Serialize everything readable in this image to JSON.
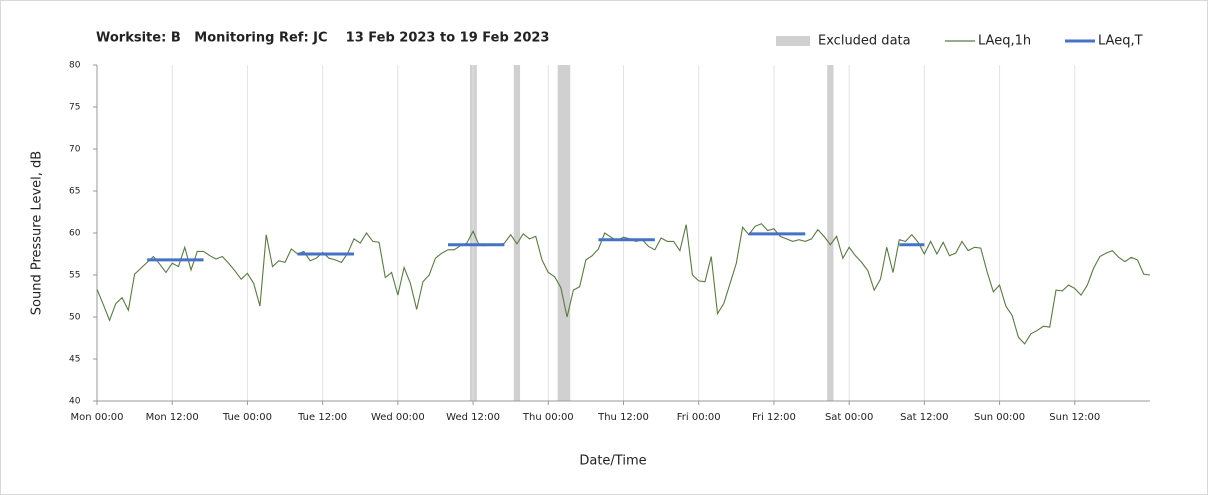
{
  "chart_data": {
    "type": "line",
    "title": "Worksite: B   Monitoring Ref: JC    13 Feb 2023 to 19 Feb 2023",
    "x_label": "Date/Time",
    "y_label": "Sound Pressure Level, dB",
    "xlim": [
      0,
      168
    ],
    "xticks": [
      {
        "value": 0,
        "label": "Mon 00:00"
      },
      {
        "value": 12,
        "label": "Mon 12:00"
      },
      {
        "value": 24,
        "label": "Tue 00:00"
      },
      {
        "value": 36,
        "label": "Tue 12:00"
      },
      {
        "value": 48,
        "label": "Wed 00:00"
      },
      {
        "value": 60,
        "label": "Wed 12:00"
      },
      {
        "value": 72,
        "label": "Thu 00:00"
      },
      {
        "value": 84,
        "label": "Thu 12:00"
      },
      {
        "value": 96,
        "label": "Fri 00:00"
      },
      {
        "value": 108,
        "label": "Fri 12:00"
      },
      {
        "value": 120,
        "label": "Sat 00:00"
      },
      {
        "value": 132,
        "label": "Sat 12:00"
      },
      {
        "value": 144,
        "label": "Sun 00:00"
      },
      {
        "value": 156,
        "label": "Sun 12:00"
      }
    ],
    "ylim": [
      40,
      80
    ],
    "yticks": [
      40,
      45,
      50,
      55,
      60,
      65,
      70,
      75,
      80
    ],
    "grid": "x",
    "legend": "top-right",
    "excluded": {
      "name": "Excluded data",
      "color": "#d0d0d0",
      "ranges": [
        [
          59.5,
          60.6
        ],
        [
          66.5,
          67.5
        ],
        [
          73.5,
          75.5
        ],
        [
          116.5,
          117.5
        ]
      ]
    },
    "series": [
      {
        "name": "LAeq,1h",
        "color": "#5a7a45",
        "x": [
          0,
          1,
          2,
          3,
          4,
          5,
          6,
          7,
          8,
          9,
          10,
          11,
          12,
          13,
          14,
          15,
          16,
          17,
          18,
          19,
          20,
          21,
          22,
          23,
          24,
          25,
          26,
          27,
          28,
          29,
          30,
          31,
          32,
          33,
          34,
          35,
          36,
          37,
          38,
          39,
          40,
          41,
          42,
          43,
          44,
          45,
          46,
          47,
          48,
          49,
          50,
          51,
          52,
          53,
          54,
          55,
          56,
          57,
          58,
          59,
          60,
          61,
          62,
          63,
          64,
          65,
          66,
          67,
          68,
          69,
          70,
          71,
          72,
          73,
          74,
          75,
          76,
          77,
          78,
          79,
          80,
          81,
          82,
          83,
          84,
          85,
          86,
          87,
          88,
          89,
          90,
          91,
          92,
          93,
          94,
          95,
          96,
          97,
          98,
          99,
          100,
          101,
          102,
          103,
          104,
          105,
          106,
          107,
          108,
          109,
          110,
          111,
          112,
          113,
          114,
          115,
          116,
          117,
          118,
          119,
          120,
          121,
          122,
          123,
          124,
          125,
          126,
          127,
          128,
          129,
          130,
          131,
          132,
          133,
          134,
          135,
          136,
          137,
          138,
          139,
          140,
          141,
          142,
          143,
          144,
          145,
          146,
          147,
          148,
          149,
          150,
          151,
          152,
          153,
          154,
          155,
          156,
          157,
          158,
          159,
          160,
          161,
          162,
          163,
          164,
          165,
          166,
          167,
          168
        ],
        "values": [
          53.3,
          51.5,
          49.6,
          51.6,
          52.3,
          50.8,
          55.1,
          55.8,
          56.5,
          57.2,
          56.3,
          55.3,
          56.4,
          56.0,
          58.3,
          55.6,
          57.8,
          57.8,
          57.3,
          56.9,
          57.2,
          56.4,
          55.5,
          54.5,
          55.2,
          54.0,
          51.3,
          59.8,
          56.0,
          56.7,
          56.5,
          58.1,
          57.5,
          57.8,
          56.7,
          57.0,
          57.7,
          57.0,
          56.8,
          56.5,
          57.6,
          59.3,
          58.8,
          60.0,
          59.0,
          58.9,
          54.7,
          55.3,
          52.6,
          55.9,
          54.0,
          50.9,
          54.2,
          55.0,
          57.0,
          57.6,
          58.0,
          58.0,
          58.5,
          58.8,
          60.2,
          58.5,
          58.5,
          58.6,
          58.5,
          58.8,
          59.8,
          58.7,
          59.9,
          59.3,
          59.6,
          56.8,
          55.3,
          54.8,
          53.5,
          50.0,
          53.2,
          53.6,
          56.8,
          57.3,
          58.1,
          60.0,
          59.5,
          59.1,
          59.5,
          59.3,
          59.0,
          59.2,
          58.4,
          58.0,
          59.4,
          59.0,
          59.0,
          57.9,
          61.0,
          55.0,
          54.3,
          54.2,
          57.2,
          50.4,
          51.6,
          54.0,
          56.4,
          60.7,
          59.8,
          60.8,
          61.1,
          60.3,
          60.5,
          59.6,
          59.3,
          59.0,
          59.2,
          59.0,
          59.3,
          60.4,
          59.6,
          58.6,
          59.6,
          57.0,
          58.3,
          57.3,
          56.5,
          55.5,
          53.2,
          54.5,
          58.3,
          55.3,
          59.2,
          59.0,
          59.8,
          58.9,
          57.5,
          59.0,
          57.5,
          58.9,
          57.3,
          57.6,
          59.0,
          57.9,
          58.3,
          58.2,
          55.4,
          53.0,
          53.8,
          51.3,
          50.2,
          47.6,
          46.8,
          48.0,
          48.4,
          48.9,
          48.8,
          53.2,
          53.1,
          53.8,
          53.4,
          52.6,
          53.8,
          55.8,
          57.2,
          57.6,
          57.9,
          57.1,
          56.6,
          57.1,
          56.8,
          55.1,
          55.0
        ]
      },
      {
        "name": "LAeq,T",
        "color": "#4472c4",
        "segments": [
          {
            "x": [
              8,
              17
            ],
            "value": 56.8
          },
          {
            "x": [
              32,
              41
            ],
            "value": 57.5
          },
          {
            "x": [
              56,
              65
            ],
            "value": 58.6
          },
          {
            "x": [
              80,
              89
            ],
            "value": 59.2
          },
          {
            "x": [
              104,
              113
            ],
            "value": 59.9
          },
          {
            "x": [
              128,
              132
            ],
            "value": 58.6
          }
        ]
      }
    ]
  }
}
